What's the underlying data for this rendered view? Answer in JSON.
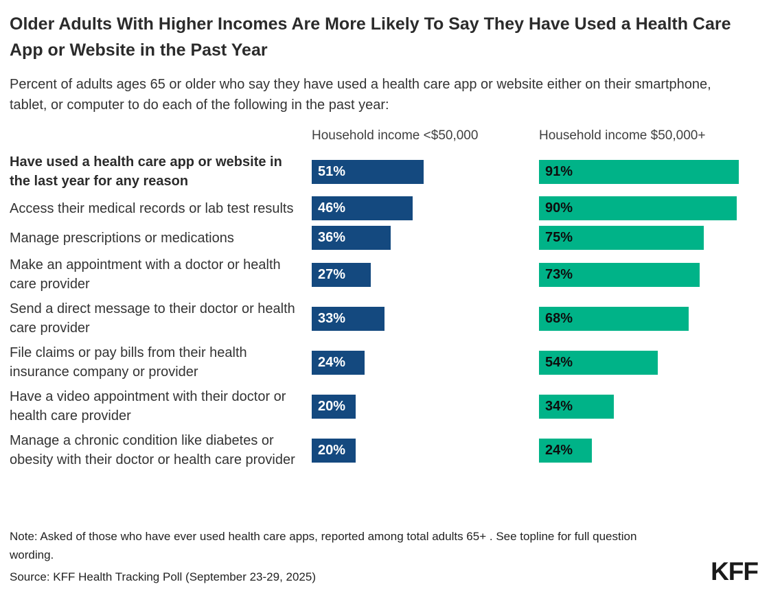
{
  "title": "Older Adults With Higher Incomes Are More Likely To Say They Have Used a Health Care App or Website in the Past Year",
  "subtitle": "Percent of adults ages 65 or older who say they have used a health care app or website either on their smartphone, tablet, or computer to do each of the following in the past year:",
  "chart_data": {
    "type": "bar",
    "orientation": "horizontal",
    "xlim": [
      0,
      100
    ],
    "value_suffix": "%",
    "grid": false,
    "legend_position": "column-headers-above-bars",
    "first_category_bold": true,
    "categories": [
      "Have used a health care app or website in the last year for any reason",
      "Access their medical records or lab test results",
      "Manage prescriptions or medications",
      "Make an appointment with a doctor or health care provider",
      "Send a direct message to their doctor or health care provider",
      "File claims or pay bills from their health insurance company or provider",
      "Have a video appointment with their doctor or health care provider",
      "Manage a chronic condition like diabetes or obesity with their doctor or health care provider"
    ],
    "series": [
      {
        "name": "Household income <$50,000",
        "color": "#14497F",
        "label_color": "#ffffff",
        "values": [
          51,
          46,
          36,
          27,
          33,
          24,
          20,
          20
        ]
      },
      {
        "name": "Household income $50,000+",
        "color": "#00B388",
        "label_color": "#0d0d0d",
        "values": [
          91,
          90,
          75,
          73,
          68,
          54,
          34,
          24
        ]
      }
    ]
  },
  "footer": {
    "note": "Note: Asked of those who have ever used health care apps, reported among total adults 65+ . See topline for full question wording.",
    "source": "Source: KFF Health Tracking Poll (September 23-29, 2025)",
    "logo_text": "KFF"
  }
}
